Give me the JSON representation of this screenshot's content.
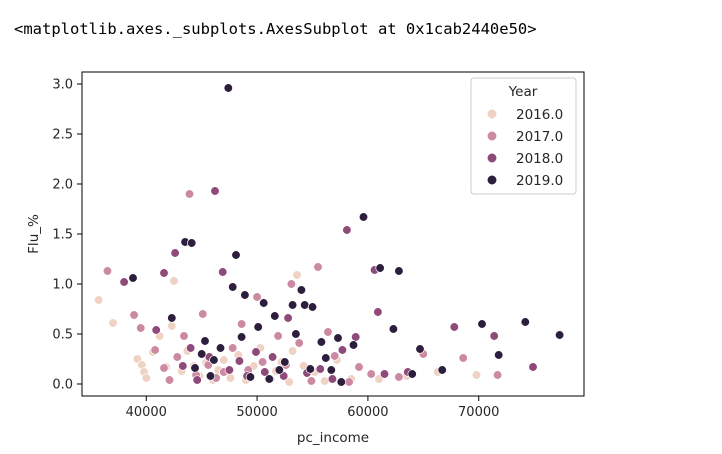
{
  "output": {
    "repr_text": "<matplotlib.axes._subplots.AxesSubplot at 0x1cab2440e50>"
  },
  "chart_data": {
    "type": "scatter",
    "xlabel": "pc_income",
    "ylabel": "Flu_%",
    "xlim": [
      34200,
      79500
    ],
    "ylim": [
      -0.12,
      3.12
    ],
    "xticks": [
      40000,
      50000,
      60000,
      70000
    ],
    "yticks": [
      0.0,
      0.5,
      1.0,
      1.5,
      2.0,
      2.5,
      3.0
    ],
    "xtick_labels": [
      "40000",
      "50000",
      "60000",
      "70000"
    ],
    "ytick_labels": [
      "0.0",
      "0.5",
      "1.0",
      "1.5",
      "2.0",
      "2.5",
      "3.0"
    ],
    "grid": false,
    "legend": {
      "title": "Year",
      "placement": "upper right"
    },
    "series": [
      {
        "name": "2016.0",
        "color": "#efd2c4",
        "points": [
          [
            35700,
            0.84
          ],
          [
            37000,
            0.61
          ],
          [
            39200,
            0.25
          ],
          [
            39600,
            0.19
          ],
          [
            39800,
            0.12
          ],
          [
            40000,
            0.06
          ],
          [
            40600,
            0.32
          ],
          [
            41200,
            0.48
          ],
          [
            41800,
            0.17
          ],
          [
            42300,
            0.58
          ],
          [
            42500,
            1.03
          ],
          [
            43200,
            0.13
          ],
          [
            43700,
            0.33
          ],
          [
            44300,
            0.18
          ],
          [
            44800,
            0.08
          ],
          [
            45400,
            0.21
          ],
          [
            46000,
            0.04
          ],
          [
            46500,
            0.14
          ],
          [
            47000,
            0.24
          ],
          [
            47600,
            0.06
          ],
          [
            48300,
            0.29
          ],
          [
            49000,
            0.04
          ],
          [
            49700,
            0.18
          ],
          [
            50300,
            0.36
          ],
          [
            51000,
            0.06
          ],
          [
            51700,
            0.13
          ],
          [
            52200,
            0.22
          ],
          [
            52900,
            0.02
          ],
          [
            53200,
            0.33
          ],
          [
            53600,
            1.09
          ],
          [
            54200,
            0.18
          ],
          [
            55200,
            0.12
          ],
          [
            56100,
            0.03
          ],
          [
            57200,
            0.24
          ],
          [
            58500,
            0.05
          ],
          [
            61000,
            0.05
          ],
          [
            63500,
            0.08
          ],
          [
            66300,
            0.12
          ],
          [
            69800,
            0.09
          ]
        ]
      },
      {
        "name": "2017.0",
        "color": "#cb8aa2",
        "points": [
          [
            36500,
            1.13
          ],
          [
            38900,
            0.69
          ],
          [
            39500,
            0.56
          ],
          [
            40800,
            0.34
          ],
          [
            41600,
            0.16
          ],
          [
            42100,
            0.04
          ],
          [
            42800,
            0.27
          ],
          [
            43400,
            0.48
          ],
          [
            43900,
            1.9
          ],
          [
            44500,
            0.09
          ],
          [
            45100,
            0.7
          ],
          [
            45600,
            0.19
          ],
          [
            46300,
            0.06
          ],
          [
            47000,
            0.12
          ],
          [
            47800,
            0.36
          ],
          [
            48600,
            0.6
          ],
          [
            49200,
            0.14
          ],
          [
            50000,
            0.87
          ],
          [
            50500,
            0.22
          ],
          [
            51200,
            0.05
          ],
          [
            51900,
            0.48
          ],
          [
            52600,
            0.19
          ],
          [
            53100,
            1.0
          ],
          [
            53800,
            0.41
          ],
          [
            54900,
            0.03
          ],
          [
            55500,
            1.17
          ],
          [
            56400,
            0.52
          ],
          [
            57000,
            0.28
          ],
          [
            58300,
            0.02
          ],
          [
            59200,
            0.17
          ],
          [
            60300,
            0.1
          ],
          [
            62800,
            0.07
          ],
          [
            65000,
            0.3
          ],
          [
            68600,
            0.26
          ],
          [
            71700,
            0.09
          ]
        ]
      },
      {
        "name": "2018.0",
        "color": "#8e4a78",
        "points": [
          [
            38000,
            1.02
          ],
          [
            40900,
            0.54
          ],
          [
            41600,
            1.11
          ],
          [
            42600,
            1.31
          ],
          [
            43300,
            0.18
          ],
          [
            44000,
            0.36
          ],
          [
            44600,
            0.04
          ],
          [
            45700,
            0.27
          ],
          [
            46200,
            1.93
          ],
          [
            46900,
            1.12
          ],
          [
            47500,
            0.14
          ],
          [
            48400,
            0.23
          ],
          [
            49100,
            0.08
          ],
          [
            49900,
            0.32
          ],
          [
            50700,
            0.12
          ],
          [
            51400,
            0.27
          ],
          [
            52400,
            0.08
          ],
          [
            52800,
            0.66
          ],
          [
            54500,
            0.11
          ],
          [
            55700,
            0.15
          ],
          [
            56800,
            0.05
          ],
          [
            57700,
            0.34
          ],
          [
            58100,
            1.54
          ],
          [
            58900,
            0.47
          ],
          [
            60600,
            1.14
          ],
          [
            60900,
            0.72
          ],
          [
            61500,
            0.1
          ],
          [
            63600,
            0.12
          ],
          [
            67800,
            0.57
          ],
          [
            71400,
            0.48
          ],
          [
            74900,
            0.17
          ]
        ]
      },
      {
        "name": "2019.0",
        "color": "#2d1e3e",
        "points": [
          [
            38800,
            1.06
          ],
          [
            42300,
            0.66
          ],
          [
            43500,
            1.42
          ],
          [
            44100,
            1.41
          ],
          [
            44400,
            0.16
          ],
          [
            45000,
            0.3
          ],
          [
            45300,
            0.43
          ],
          [
            45800,
            0.08
          ],
          [
            46100,
            0.24
          ],
          [
            46700,
            0.36
          ],
          [
            47400,
            2.96
          ],
          [
            47800,
            0.97
          ],
          [
            48100,
            1.29
          ],
          [
            48600,
            0.47
          ],
          [
            48900,
            0.89
          ],
          [
            49400,
            0.07
          ],
          [
            50100,
            0.57
          ],
          [
            50600,
            0.81
          ],
          [
            51100,
            0.05
          ],
          [
            51600,
            0.68
          ],
          [
            52000,
            0.14
          ],
          [
            52500,
            0.22
          ],
          [
            53200,
            0.79
          ],
          [
            53500,
            0.5
          ],
          [
            54000,
            0.94
          ],
          [
            54300,
            0.79
          ],
          [
            54800,
            0.15
          ],
          [
            55000,
            0.77
          ],
          [
            55800,
            0.42
          ],
          [
            56200,
            0.26
          ],
          [
            56700,
            0.14
          ],
          [
            57300,
            0.46
          ],
          [
            57600,
            0.02
          ],
          [
            58700,
            0.39
          ],
          [
            59600,
            1.67
          ],
          [
            61100,
            1.16
          ],
          [
            62300,
            0.55
          ],
          [
            62800,
            1.13
          ],
          [
            64000,
            0.1
          ],
          [
            64700,
            0.35
          ],
          [
            66700,
            0.14
          ],
          [
            70300,
            0.6
          ],
          [
            71800,
            0.29
          ],
          [
            74200,
            0.62
          ],
          [
            77300,
            0.49
          ]
        ]
      }
    ]
  }
}
